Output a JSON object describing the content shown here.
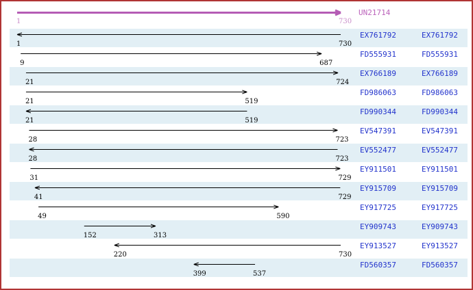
{
  "colors": {
    "border": "#b03434",
    "background": "#ffffff",
    "stripe": "#e2eff5",
    "reference_arrow": "#b55cb5",
    "reference_label": "#bb63bb",
    "reference_numbers": "#c98cc9",
    "accession_text": "#2233cc",
    "alignment_arrow": "#000000",
    "position_numbers": "#000000"
  },
  "chart_data": {
    "type": "bar",
    "subtype": "horizontal-interval-arrow-alignment",
    "orientation": "horizontal",
    "xlim": [
      1,
      730
    ],
    "grid": false,
    "legend": false,
    "label_columns": 2,
    "reference": {
      "id": "UN21714",
      "start": 1,
      "end": 730,
      "direction": "right"
    },
    "rows": [
      {
        "id": "EX761792",
        "start": 1,
        "end": 730,
        "direction": "left"
      },
      {
        "id": "FD555931",
        "start": 9,
        "end": 687,
        "direction": "right"
      },
      {
        "id": "EX766189",
        "start": 21,
        "end": 724,
        "direction": "right"
      },
      {
        "id": "FD986063",
        "start": 21,
        "end": 519,
        "direction": "right"
      },
      {
        "id": "FD990344",
        "start": 21,
        "end": 519,
        "direction": "left"
      },
      {
        "id": "EV547391",
        "start": 28,
        "end": 723,
        "direction": "right"
      },
      {
        "id": "EV552477",
        "start": 28,
        "end": 723,
        "direction": "left"
      },
      {
        "id": "EY911501",
        "start": 31,
        "end": 729,
        "direction": "right"
      },
      {
        "id": "EY915709",
        "start": 41,
        "end": 729,
        "direction": "left"
      },
      {
        "id": "EY917725",
        "start": 49,
        "end": 590,
        "direction": "right"
      },
      {
        "id": "EY909743",
        "start": 152,
        "end": 313,
        "direction": "right"
      },
      {
        "id": "EY913527",
        "start": 220,
        "end": 730,
        "direction": "left"
      },
      {
        "id": "FD560357",
        "start": 399,
        "end": 537,
        "direction": "left"
      }
    ]
  }
}
